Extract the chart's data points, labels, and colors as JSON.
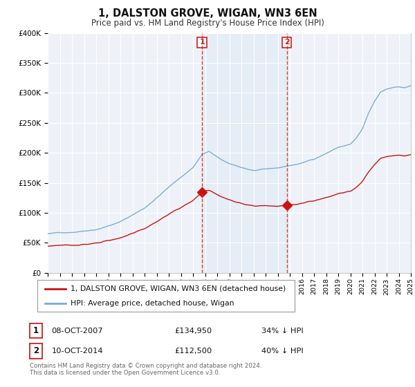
{
  "title": "1, DALSTON GROVE, WIGAN, WN3 6EN",
  "subtitle": "Price paid vs. HM Land Registry's House Price Index (HPI)",
  "ylim": [
    0,
    400000
  ],
  "yticks": [
    0,
    50000,
    100000,
    150000,
    200000,
    250000,
    300000,
    350000,
    400000
  ],
  "ytick_labels": [
    "£0",
    "£50K",
    "£100K",
    "£150K",
    "£200K",
    "£250K",
    "£300K",
    "£350K",
    "£400K"
  ],
  "background_color": "#ffffff",
  "plot_bg_color": "#eef2f8",
  "shade_color": "#dce8f5",
  "grid_color": "#ffffff",
  "hpi_color": "#7aadd4",
  "price_color": "#cc1111",
  "vline_color": "#cc2222",
  "legend_line1": "1, DALSTON GROVE, WIGAN, WN3 6EN (detached house)",
  "legend_line2": "HPI: Average price, detached house, Wigan",
  "sale1": {
    "label": "1",
    "date": "08-OCT-2007",
    "price": 134950,
    "pct": "34% ↓ HPI"
  },
  "sale2": {
    "label": "2",
    "date": "10-OCT-2014",
    "price": 112500,
    "pct": "40% ↓ HPI"
  },
  "footer": "Contains HM Land Registry data © Crown copyright and database right 2024.\nThis data is licensed under the Open Government Licence v3.0.",
  "x_start_year": 1995,
  "n_months": 361,
  "sale1_month": 153,
  "sale2_month": 237,
  "xtick_years": [
    1995,
    1996,
    1997,
    1998,
    1999,
    2000,
    2001,
    2002,
    2003,
    2004,
    2005,
    2006,
    2007,
    2008,
    2009,
    2010,
    2011,
    2012,
    2013,
    2014,
    2015,
    2016,
    2017,
    2018,
    2019,
    2020,
    2021,
    2022,
    2023,
    2024,
    2025
  ]
}
